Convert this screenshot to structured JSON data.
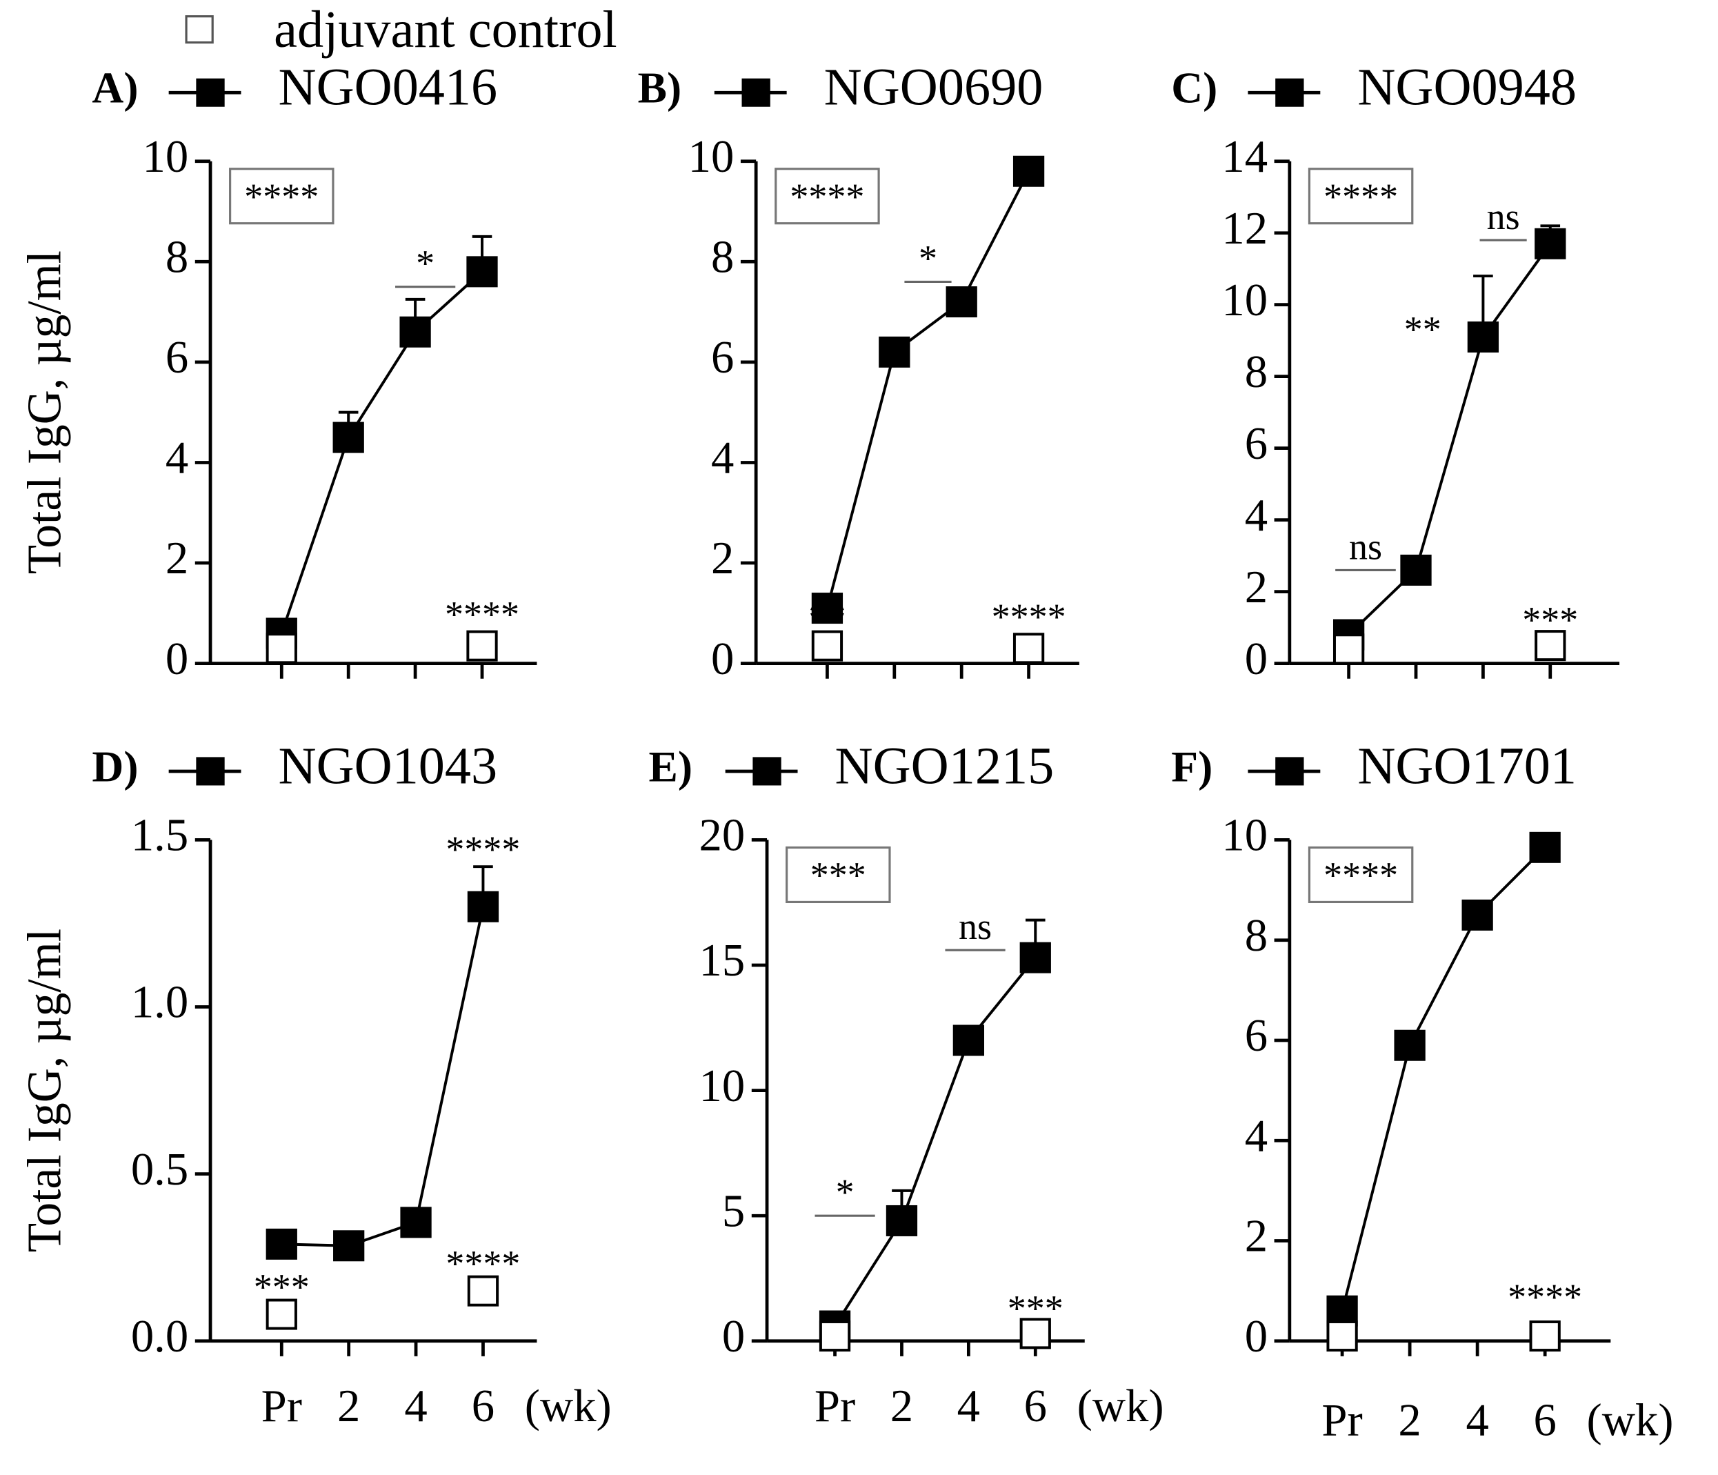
{
  "legend_control": "adjuvant control",
  "y_label": "Total IgG, µg/ml",
  "x_unit": "(wk)",
  "chart_data": [
    {
      "type": "line",
      "panel": "A)",
      "categories": [
        null,
        null,
        null,
        null
      ],
      "ylim": [
        0,
        10
      ],
      "yticks": [
        0,
        2,
        4,
        6,
        8,
        10
      ],
      "series": [
        {
          "name": "NGO0416",
          "color": "#000000",
          "values": [
            0.6,
            4.5,
            6.6,
            7.8
          ],
          "errors": [
            null,
            0.5,
            0.65,
            0.7
          ]
        },
        {
          "color": "#000000",
          "values": [
            0.3,
            null,
            null,
            0.35
          ]
        }
      ],
      "box": "****",
      "annotations": [
        "*",
        "****"
      ]
    },
    {
      "type": "line",
      "panel": "B)",
      "categories": [
        null,
        null,
        null,
        null
      ],
      "ylim": [
        0,
        10
      ],
      "yticks": [
        0,
        2,
        4,
        6,
        8,
        10
      ],
      "series": [
        {
          "name": "NGO0690",
          "color": "#000000",
          "values": [
            1.1,
            6.2,
            7.2,
            9.8
          ],
          "errors": [
            null,
            null,
            0.25,
            null
          ]
        },
        {
          "color": "#000000",
          "values": [
            0.35,
            null,
            null,
            0.3
          ]
        }
      ],
      "box": "****",
      "annotations": [
        "*",
        "**",
        "****"
      ]
    },
    {
      "type": "line",
      "panel": "C)",
      "categories": [
        null,
        null,
        null,
        null
      ],
      "ylim": [
        0,
        14
      ],
      "yticks": [
        0,
        2,
        4,
        6,
        8,
        10,
        12,
        14
      ],
      "series": [
        {
          "name": "NGO0948",
          "color": "#000000",
          "values": [
            0.8,
            2.6,
            9.1,
            11.7
          ],
          "errors": [
            null,
            0.3,
            1.7,
            0.5
          ]
        },
        {
          "color": "#000000",
          "values": [
            0.4,
            null,
            null,
            0.5
          ]
        }
      ],
      "box": "****",
      "annotations": [
        "ns",
        "**",
        "ns",
        "***"
      ]
    },
    {
      "type": "line",
      "panel": "D)",
      "categories": [
        "Pr",
        "2",
        "4",
        "6"
      ],
      "ylim": [
        0,
        1.5
      ],
      "yticks": [
        {
          "value": 0,
          "label": "0.0"
        },
        0.5,
        {
          "value": 1,
          "label": "1.0"
        },
        1.5
      ],
      "series": [
        {
          "name": "NGO1043",
          "color": "#000000",
          "values": [
            0.29,
            0.285,
            0.355,
            1.3
          ],
          "errors": [
            null,
            null,
            null,
            0.12
          ]
        },
        {
          "color": "#000000",
          "values": [
            0.08,
            null,
            null,
            0.15
          ]
        }
      ],
      "annotations": [
        "****",
        "***",
        "****"
      ]
    },
    {
      "type": "line",
      "panel": "E)",
      "categories": [
        "Pr",
        "2",
        "4",
        "6"
      ],
      "ylim": [
        0,
        20
      ],
      "yticks": [
        0,
        5,
        10,
        15,
        20
      ],
      "series": [
        {
          "name": "NGO1215",
          "color": "#000000",
          "values": [
            0.6,
            4.8,
            12,
            15.3
          ],
          "errors": [
            null,
            1.2,
            null,
            1.5
          ]
        },
        {
          "color": "#000000",
          "values": [
            0.2,
            null,
            null,
            0.3
          ]
        }
      ],
      "box": "***",
      "annotations": [
        "*",
        "ns",
        "***"
      ]
    },
    {
      "type": "line",
      "panel": "F)",
      "categories": [
        "Pr",
        "2",
        "4",
        "6"
      ],
      "ylim": [
        0,
        10
      ],
      "yticks": [
        0,
        2,
        4,
        6,
        8,
        10
      ],
      "series": [
        {
          "name": "NGO1701",
          "color": "#000000",
          "values": [
            0.6,
            5.9,
            8.5,
            9.85
          ]
        },
        {
          "color": "#000000",
          "values": [
            0.1,
            null,
            null,
            0.1
          ]
        }
      ],
      "box": "****",
      "annotations": [
        "****"
      ]
    }
  ]
}
